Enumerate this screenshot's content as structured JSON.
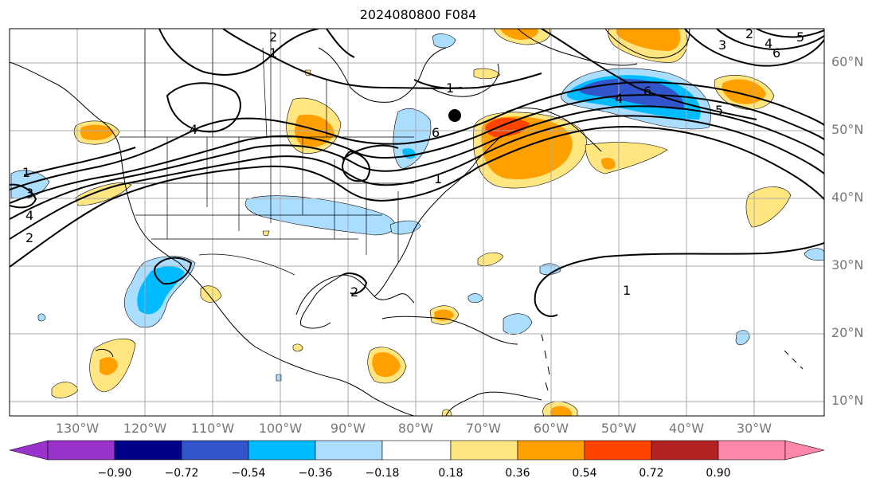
{
  "title": "2024080800 F084",
  "lat_labels": [
    "60°N",
    "50°N",
    "40°N",
    "30°N",
    "20°N",
    "10°N"
  ],
  "lon_labels": [
    "130°W",
    "120°W",
    "110°W",
    "100°W",
    "90°W",
    "80°W",
    "70°W",
    "60°W",
    "50°W",
    "40°W",
    "30°W"
  ],
  "contour_labels": [
    "2",
    "1",
    "4",
    "1",
    "6",
    "1",
    "4",
    "6",
    "5",
    "3",
    "2",
    "4",
    "6",
    "5",
    "1",
    "3",
    "4",
    "2",
    "1",
    "2"
  ],
  "colorbar": {
    "ticks": [
      "−0.90",
      "−0.72",
      "−0.54",
      "−0.36",
      "−0.18",
      "0.18",
      "0.36",
      "0.54",
      "0.72",
      "0.90"
    ],
    "colors": [
      "#9933cc",
      "#000088",
      "#3355cc",
      "#00bbff",
      "#aaddff",
      "#ffffff",
      "#ffe680",
      "#ffa000",
      "#ff4400",
      "#b22222",
      "#ff88aa"
    ]
  },
  "marker": {
    "type": "black-dot"
  }
}
